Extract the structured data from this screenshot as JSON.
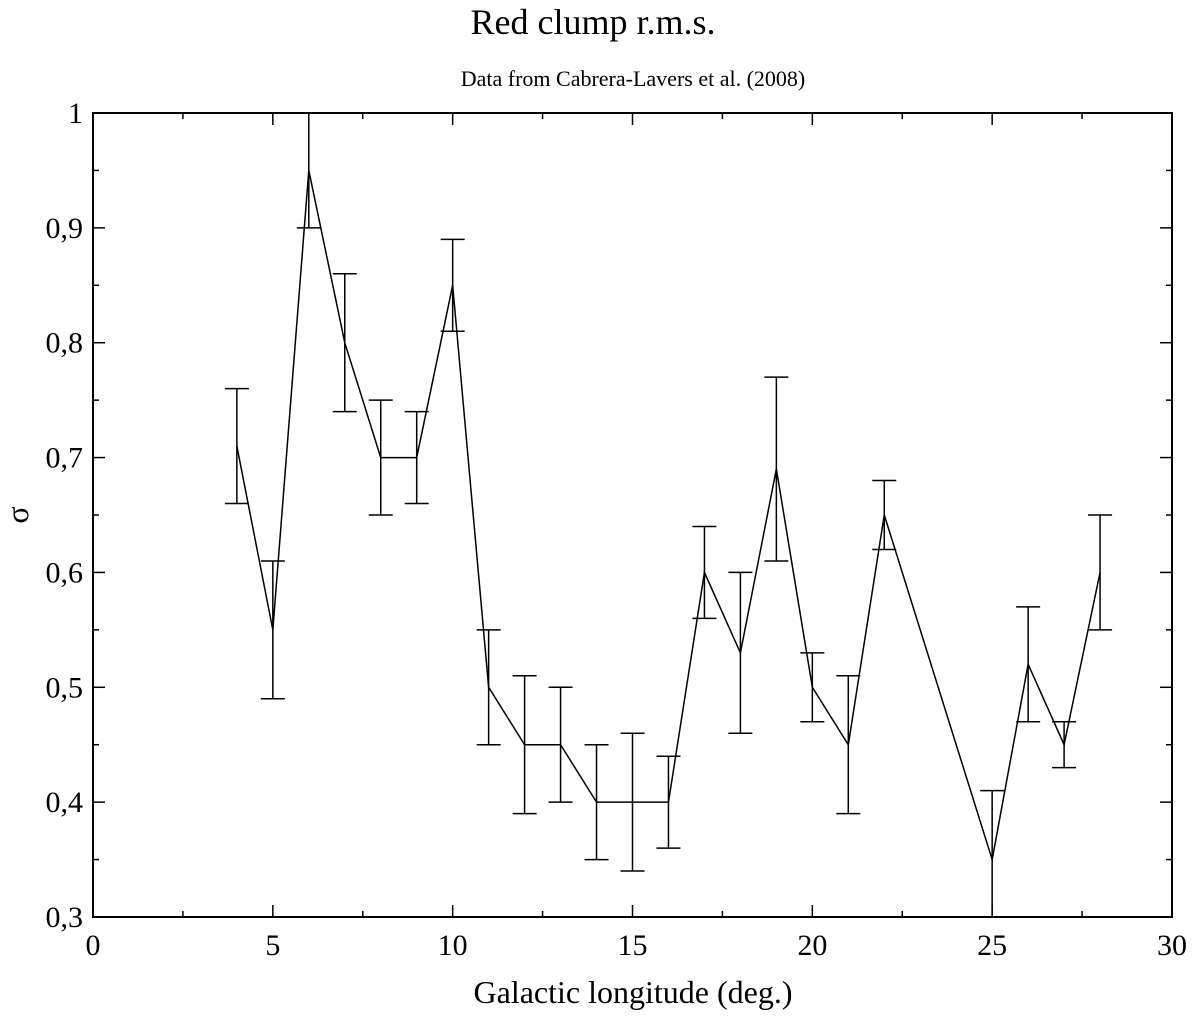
{
  "chart_data": {
    "type": "line",
    "title": "Red clump r.m.s.",
    "subtitle": "Data from Cabrera-Lavers et al. (2008)",
    "xlabel": "Galactic longitude (deg.)",
    "ylabel": "σ",
    "xlim": [
      0,
      30
    ],
    "ylim": [
      0.3,
      1.0
    ],
    "xticks": [
      "0",
      "5",
      "10",
      "15",
      "20",
      "25",
      "30"
    ],
    "yticks": [
      "0,3",
      "0,4",
      "0,5",
      "0,6",
      "0,7",
      "0,8",
      "0,9",
      "1"
    ],
    "grid": false,
    "error_bars": true,
    "series": [
      {
        "x": [
          4,
          5,
          6,
          7,
          8,
          9,
          10,
          11,
          12,
          13,
          14,
          15,
          16,
          17,
          18,
          19,
          20,
          21,
          22,
          25,
          26,
          27,
          28
        ],
        "y": [
          0.71,
          0.55,
          0.95,
          0.8,
          0.7,
          0.7,
          0.85,
          0.5,
          0.45,
          0.45,
          0.4,
          0.4,
          0.4,
          0.6,
          0.53,
          0.69,
          0.5,
          0.45,
          0.65,
          0.35,
          0.52,
          0.45,
          0.6
        ],
        "yerr": [
          0.05,
          0.06,
          0.05,
          0.06,
          0.05,
          0.04,
          0.04,
          0.05,
          0.06,
          0.05,
          0.05,
          0.06,
          0.04,
          0.04,
          0.07,
          0.08,
          0.03,
          0.06,
          0.03,
          0.06,
          0.05,
          0.02,
          0.05
        ]
      }
    ],
    "color": "#000000"
  }
}
